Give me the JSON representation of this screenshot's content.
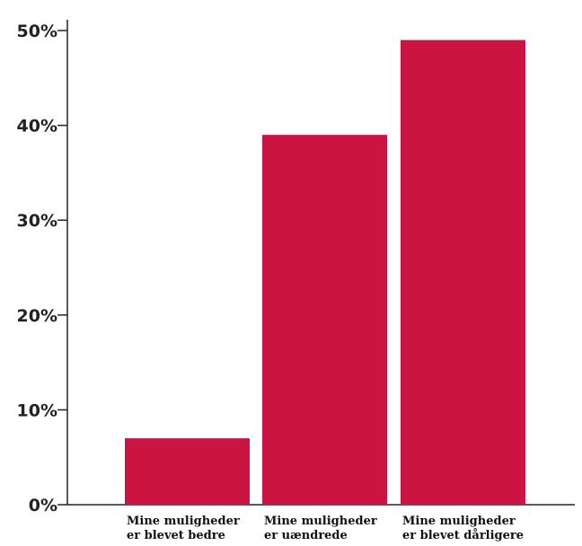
{
  "chart_data": {
    "type": "bar",
    "categories": [
      [
        "Mine muligheder",
        "er blevet bedre"
      ],
      [
        "Mine muligheder",
        "er uændrede"
      ],
      [
        "Mine muligheder",
        "er blevet dårligere"
      ]
    ],
    "values": [
      7,
      39,
      49
    ],
    "ylim": [
      0,
      50
    ],
    "yticks": [
      "0%",
      "10%",
      "20%",
      "30%",
      "40%",
      "50%"
    ],
    "ytick_values": [
      0,
      10,
      20,
      30,
      40,
      50
    ],
    "grid": false,
    "bar_color": "#cc1443"
  }
}
